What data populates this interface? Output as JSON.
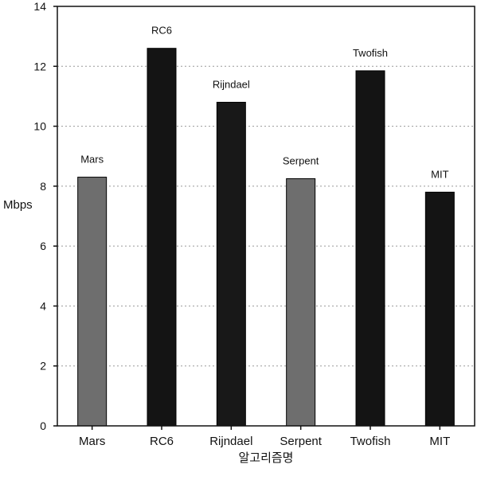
{
  "chart_data": {
    "type": "bar",
    "categories": [
      "Mars",
      "RC6",
      "Rijndael",
      "Serpent",
      "Twofish",
      "MIT"
    ],
    "values": [
      8.3,
      12.6,
      10.8,
      8.25,
      11.85,
      7.8
    ],
    "bar_labels": [
      "Mars",
      "RC6",
      "Rijndael",
      "Serpent",
      "Twofish",
      "MIT"
    ],
    "bar_colors": [
      "#6e6e6e",
      "#141414",
      "#181818",
      "#6e6e6e",
      "#141414",
      "#141414"
    ],
    "xlabel": "알고리즘명",
    "ylabel": "Mbps",
    "ylim": [
      0,
      14
    ],
    "yticks": [
      0,
      2,
      4,
      6,
      8,
      10,
      12,
      14
    ],
    "grid": true
  }
}
